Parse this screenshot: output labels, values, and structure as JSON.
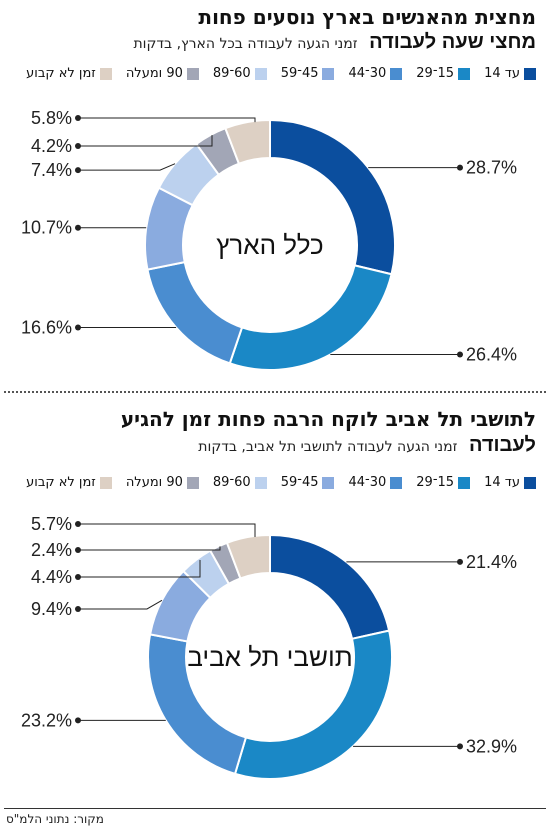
{
  "colors": {
    "under14": "#0b4e9e",
    "15to29": "#1a88c6",
    "30to44": "#4a8dd0",
    "45to59": "#8aabdf",
    "60to89": "#bcd1ee",
    "90plus": "#a2a6b6",
    "irregular": "#ddd0c4"
  },
  "legend": [
    {
      "label": "עד 14",
      "color": "#0b4e9e"
    },
    {
      "label": "15־29",
      "color": "#1a88c6"
    },
    {
      "label": "30־44",
      "color": "#4a8dd0"
    },
    {
      "label": "45־59",
      "color": "#8aabdf"
    },
    {
      "label": "60־89",
      "color": "#bcd1ee"
    },
    {
      "label": "90 ומעלה",
      "color": "#a2a6b6"
    },
    {
      "label": "זמן לא קבוע",
      "color": "#ddd0c4"
    }
  ],
  "source": "מקור: נתוני הלמ\"ס",
  "chart_data": [
    {
      "type": "pie",
      "title": "מחצית מהאנשים בארץ נוסעים פחות",
      "subtitle": "מחצי שעה לעבודה",
      "subtitle_note": "זמני הגעה לעבודה בכל הארץ, בדקות",
      "center_label": "כלל הארץ",
      "categories": [
        "עד 14",
        "15־29",
        "30־44",
        "45־59",
        "60־89",
        "90 ומעלה",
        "זמן לא קבוע"
      ],
      "values": [
        28.7,
        26.4,
        16.6,
        10.7,
        7.4,
        4.2,
        5.8
      ],
      "value_labels": [
        "28.7%",
        "26.4%",
        "16.6%",
        "10.7%",
        "7.4%",
        "4.2%",
        "5.8%"
      ],
      "donut": true
    },
    {
      "type": "pie",
      "title": "לתושבי תל אביב לוקח הרבה פחות זמן להגיע",
      "subtitle": "לעבודה",
      "subtitle_note": "זמני הגעה לעבודה לתושבי תל אביב, בדקות",
      "center_label": "תושבי תל אביב",
      "categories": [
        "עד 14",
        "15־29",
        "30־44",
        "45־59",
        "60־89",
        "90 ומעלה",
        "זמן לא קבוע"
      ],
      "values": [
        21.4,
        32.9,
        23.2,
        9.4,
        4.4,
        2.4,
        5.7
      ],
      "value_labels": [
        "21.4%",
        "32.9%",
        "23.2%",
        "9.4%",
        "4.4%",
        "2.4%",
        "5.7%"
      ],
      "donut": true
    }
  ]
}
